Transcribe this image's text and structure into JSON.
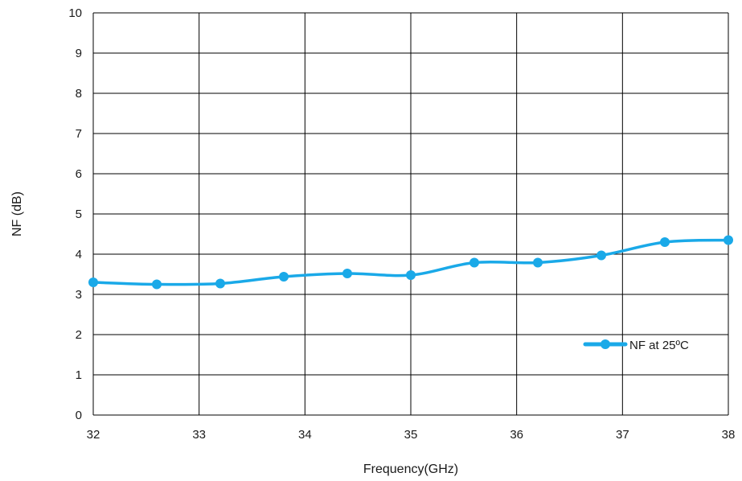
{
  "chart_data": {
    "type": "line",
    "title": "",
    "xlabel": "Frequency(GHz)",
    "ylabel": "NF (dB)",
    "xlim": [
      32,
      38
    ],
    "ylim": [
      0,
      10
    ],
    "x_ticks": [
      "32",
      "33",
      "34",
      "35",
      "36",
      "37",
      "38"
    ],
    "y_ticks": [
      "0",
      "1",
      "2",
      "3",
      "4",
      "5",
      "6",
      "7",
      "8",
      "9",
      "10"
    ],
    "grid": true,
    "legend_position": "right",
    "series": [
      {
        "name": "NF at 25ºC",
        "color": "#1aa9e8",
        "x": [
          32,
          32.6,
          33.2,
          33.8,
          34.4,
          35,
          35.6,
          36.2,
          36.8,
          37.4,
          38
        ],
        "y": [
          3.3,
          3.25,
          3.27,
          3.44,
          3.52,
          3.48,
          3.79,
          3.79,
          3.97,
          4.3,
          4.35
        ]
      }
    ]
  }
}
